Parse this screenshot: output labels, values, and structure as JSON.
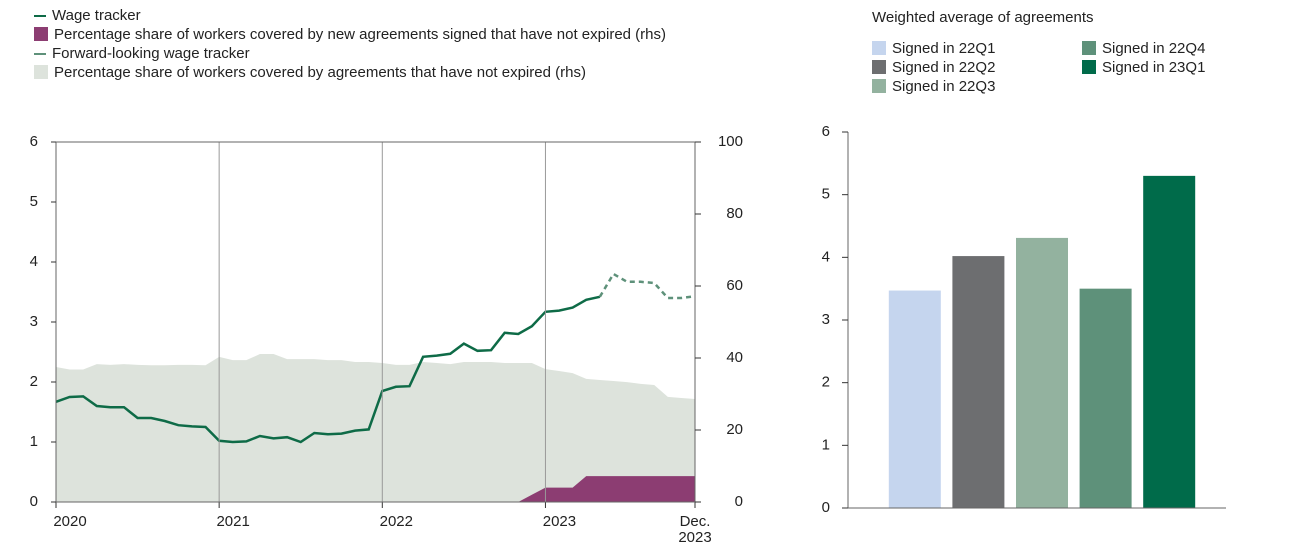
{
  "chart_data": [
    {
      "type": "line",
      "categories": [
        "2020",
        null,
        null,
        null,
        null,
        null,
        null,
        null,
        null,
        null,
        null,
        null,
        "2021",
        null,
        null,
        null,
        null,
        null,
        null,
        null,
        null,
        null,
        null,
        null,
        "2022",
        null,
        null,
        null,
        null,
        null,
        null,
        null,
        null,
        null,
        null,
        null,
        "2023",
        null,
        null,
        null,
        null,
        null,
        null,
        null,
        null,
        null,
        null,
        "Dec. 2023"
      ],
      "ylim": [
        0,
        6
      ],
      "yticks": [
        0,
        1,
        2,
        3,
        4,
        5,
        6
      ],
      "y2lim": [
        0,
        100
      ],
      "y2ticks": [
        0,
        20,
        40,
        60,
        80,
        100
      ],
      "grid": "x",
      "series": [
        {
          "name": "Wage tracker",
          "kind": "line",
          "color": "#0e6b47",
          "values": [
            1.67,
            1.75,
            1.76,
            1.6,
            1.58,
            1.58,
            1.4,
            1.4,
            1.35,
            1.28,
            1.26,
            1.25,
            1.02,
            1.0,
            1.01,
            1.1,
            1.06,
            1.08,
            1.0,
            1.15,
            1.13,
            1.14,
            1.19,
            1.21,
            1.85,
            1.92,
            1.93,
            2.42,
            2.44,
            2.47,
            2.64,
            2.52,
            2.53,
            2.82,
            2.8,
            2.93,
            3.17,
            3.19,
            3.24,
            3.37,
            3.42,
            null,
            null,
            null,
            null,
            null,
            null,
            null
          ]
        },
        {
          "name": "Percentage share of workers covered by new agreements signed that have not expired (rhs)",
          "kind": "area",
          "axis": "y2",
          "color": "#8c3d72",
          "values": [
            0,
            0,
            0,
            0,
            0,
            0,
            0,
            0,
            0,
            0,
            0,
            0,
            0,
            0,
            0,
            0,
            0,
            0,
            0,
            0,
            0,
            0,
            0,
            0,
            0,
            0,
            0,
            0,
            0,
            0,
            0,
            0,
            0,
            0,
            0,
            2,
            4,
            4,
            4,
            7.2,
            7.2,
            7.2,
            7.2,
            7.2,
            7.2,
            7.2,
            7.2,
            7.2
          ]
        },
        {
          "name": "Forward-looking wage tracker",
          "kind": "dashed",
          "color": "#5e917a",
          "values": [
            null,
            null,
            null,
            null,
            null,
            null,
            null,
            null,
            null,
            null,
            null,
            null,
            null,
            null,
            null,
            null,
            null,
            null,
            null,
            null,
            null,
            null,
            null,
            null,
            null,
            null,
            null,
            null,
            null,
            null,
            null,
            null,
            null,
            null,
            null,
            null,
            null,
            null,
            null,
            null,
            3.42,
            3.8,
            3.67,
            3.67,
            3.65,
            3.4,
            3.4,
            3.43
          ]
        },
        {
          "name": "Percentage share of workers covered by agreements that have not expired (rhs)",
          "kind": "area",
          "axis": "y2",
          "color": "#dde3dc",
          "values": [
            37.5,
            36.8,
            36.8,
            38.3,
            38.1,
            38.3,
            38.1,
            38,
            38,
            38.1,
            38.1,
            38,
            40.3,
            39.4,
            39.4,
            41.1,
            41.1,
            39.7,
            39.7,
            39.7,
            39.4,
            39.4,
            38.9,
            38.9,
            38.6,
            38.1,
            38.1,
            38.9,
            38.6,
            38.3,
            38.9,
            38.9,
            38.9,
            38.6,
            38.6,
            38.6,
            36.9,
            36.4,
            35.8,
            34.2,
            33.9,
            33.6,
            33.3,
            32.8,
            32.5,
            29.2,
            28.9,
            28.6
          ]
        }
      ]
    },
    {
      "type": "bar",
      "legend_title": "Weighted average of agreements",
      "categories": [
        "Signed in 22Q1",
        "Signed in 22Q2",
        "Signed in 22Q3",
        "Signed in 22Q4",
        "Signed in 23Q1"
      ],
      "values": [
        3.47,
        4.02,
        4.31,
        3.5,
        5.3
      ],
      "colors": [
        "#c5d5ee",
        "#6d6e70",
        "#93b29f",
        "#5e917a",
        "#006b4a"
      ],
      "ylim": [
        0,
        6
      ],
      "yticks": [
        0,
        1,
        2,
        3,
        4,
        5,
        6
      ]
    }
  ]
}
